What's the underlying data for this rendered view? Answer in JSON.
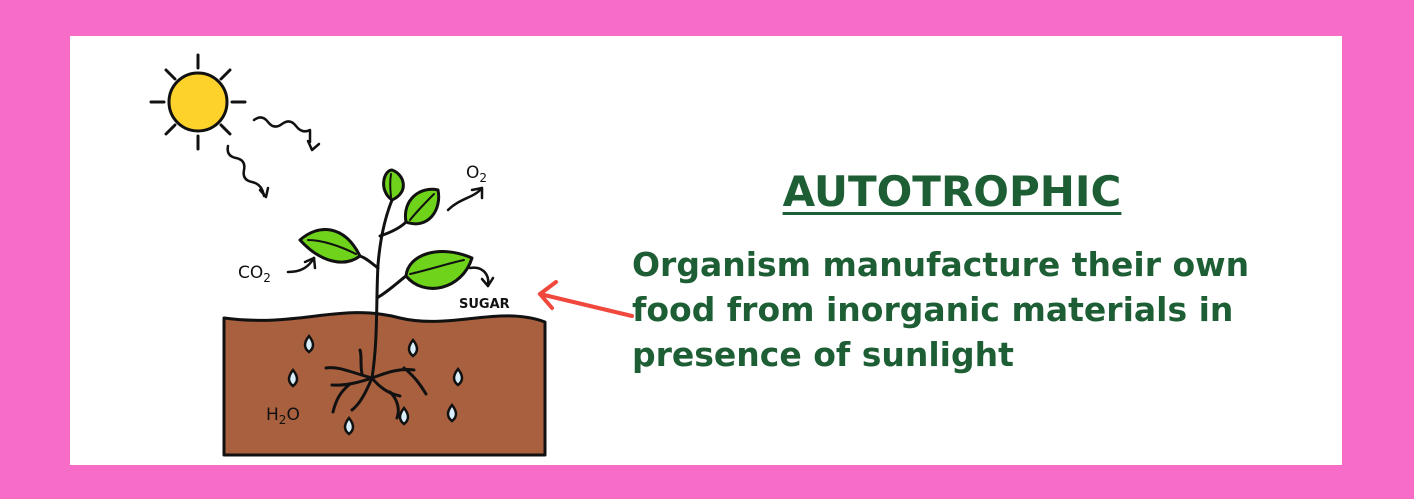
{
  "title": "AUTOTROPHIC",
  "description": "Organism manufacture their own food from inorganic materials in presence of sunlight",
  "diagram": {
    "labels": {
      "oxygen": {
        "symbol": "O",
        "subscript": "2"
      },
      "carbon_dioxide": {
        "symbol": "CO",
        "subscript": "2"
      },
      "sugar": "SUGAR",
      "water": {
        "symbol": "H",
        "subscript": "2",
        "suffix": "O"
      }
    }
  },
  "colors": {
    "border": "#f76cc6",
    "panel": "#ffffff",
    "text": "#1d5e35",
    "sun": "#fdd22a",
    "leaf": "#6ed31a",
    "soil": "#a9603f",
    "water_drop": "#d8eefa",
    "arrow": "#f0483c"
  },
  "icons": [
    "sun-icon",
    "plant-icon",
    "soil-icon",
    "water-drop-icon",
    "arrow-icon"
  ]
}
